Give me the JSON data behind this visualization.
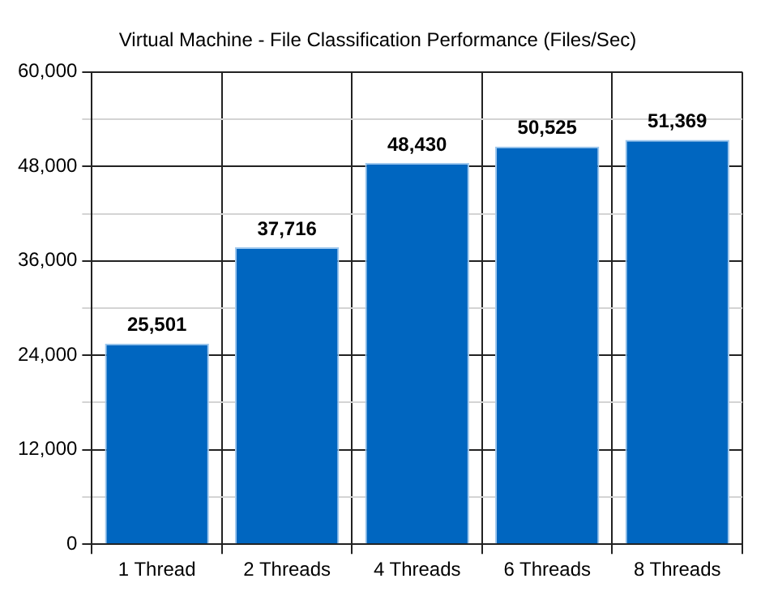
{
  "chart_data": {
    "type": "bar",
    "title": "Virtual Machine - File Classification Performance (Files/Sec)",
    "categories": [
      "1 Thread",
      "2 Threads",
      "4 Threads",
      "6 Threads",
      "8 Threads"
    ],
    "values": [
      25501,
      37716,
      48430,
      50525,
      51369
    ],
    "color": "#0066c0",
    "value_labels": [
      "25,501",
      "37,716",
      "48,430",
      "50,525",
      "51,369"
    ],
    "ylim": [
      0,
      60000
    ],
    "yticks": [
      0,
      {
        "value": 6000,
        "label": null
      },
      {
        "value": 12000,
        "label": "12,000"
      },
      {
        "value": 18000,
        "label": null
      },
      {
        "value": 24000,
        "label": "24,000"
      },
      {
        "value": 30000,
        "label": null
      },
      {
        "value": 36000,
        "label": "36,000"
      },
      {
        "value": 42000,
        "label": null
      },
      {
        "value": 48000,
        "label": "48,000"
      },
      {
        "value": 54000,
        "label": null
      },
      {
        "value": 60000,
        "label": "60,000"
      }
    ],
    "grid": true
  }
}
